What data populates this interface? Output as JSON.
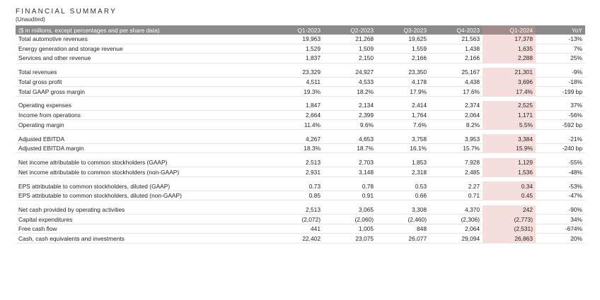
{
  "title": "FINANCIAL SUMMARY",
  "subtitle": "(Unaudited)",
  "header": {
    "label": "($ in millions, except percentages and per share data)",
    "columns": [
      "Q1-2023",
      "Q2-2023",
      "Q3-2023",
      "Q4-2023",
      "Q1-2024",
      "YoY"
    ]
  },
  "highlight_color": "#f6dedd",
  "groups": [
    {
      "rows": [
        {
          "label": "Total automotive revenues",
          "values": [
            "19,963",
            "21,268",
            "19,625",
            "21,563",
            "17,378",
            "-13%"
          ]
        },
        {
          "label": "Energy generation and storage revenue",
          "values": [
            "1,529",
            "1,509",
            "1,559",
            "1,438",
            "1,635",
            "7%"
          ]
        },
        {
          "label": "Services and other revenue",
          "values": [
            "1,837",
            "2,150",
            "2,166",
            "2,166",
            "2,288",
            "25%"
          ]
        }
      ]
    },
    {
      "rows": [
        {
          "label": "Total revenues",
          "values": [
            "23,329",
            "24,927",
            "23,350",
            "25,167",
            "21,301",
            "-9%"
          ]
        },
        {
          "label": "Total gross profit",
          "values": [
            "4,511",
            "4,533",
            "4,178",
            "4,438",
            "3,696",
            "-18%"
          ]
        },
        {
          "label": "Total GAAP gross margin",
          "values": [
            "19.3%",
            "18.2%",
            "17.9%",
            "17.6%",
            "17.4%",
            "-199 bp"
          ]
        }
      ]
    },
    {
      "rows": [
        {
          "label": "Operating expenses",
          "values": [
            "1,847",
            "2,134",
            "2,414",
            "2,374",
            "2,525",
            "37%"
          ]
        },
        {
          "label": "Income from operations",
          "values": [
            "2,664",
            "2,399",
            "1,764",
            "2,064",
            "1,171",
            "-56%"
          ]
        },
        {
          "label": "Operating margin",
          "values": [
            "11.4%",
            "9.6%",
            "7.6%",
            "8.2%",
            "5.5%",
            "-592 bp"
          ]
        }
      ]
    },
    {
      "rows": [
        {
          "label": "Adjusted EBITDA",
          "values": [
            "4,267",
            "4,653",
            "3,758",
            "3,953",
            "3,384",
            "-21%"
          ]
        },
        {
          "label": "Adjusted EBITDA margin",
          "values": [
            "18.3%",
            "18.7%",
            "16.1%",
            "15.7%",
            "15.9%",
            "-240 bp"
          ]
        }
      ]
    },
    {
      "rows": [
        {
          "label": "Net income attributable to common stockholders (GAAP)",
          "values": [
            "2,513",
            "2,703",
            "1,853",
            "7,928",
            "1,129",
            "-55%"
          ]
        },
        {
          "label": "Net income attributable to common stockholders (non-GAAP)",
          "values": [
            "2,931",
            "3,148",
            "2,318",
            "2,485",
            "1,536",
            "-48%"
          ]
        }
      ]
    },
    {
      "rows": [
        {
          "label": "EPS attributable to common stockholders, diluted (GAAP)",
          "values": [
            "0.73",
            "0.78",
            "0.53",
            "2.27",
            "0.34",
            "-53%"
          ]
        },
        {
          "label": "EPS attributable to common stockholders, diluted (non-GAAP)",
          "values": [
            "0.85",
            "0.91",
            "0.66",
            "0.71",
            "0.45",
            "-47%"
          ]
        }
      ]
    },
    {
      "rows": [
        {
          "label": "Net cash provided by operating activities",
          "values": [
            "2,513",
            "3,065",
            "3,308",
            "4,370",
            "242",
            "-90%"
          ]
        },
        {
          "label": "Capital expenditures",
          "values": [
            "(2,072)",
            "(2,060)",
            "(2,460)",
            "(2,306)",
            "(2,773)",
            "34%"
          ]
        },
        {
          "label": "Free cash flow",
          "values": [
            "441",
            "1,005",
            "848",
            "2,064",
            "(2,531)",
            "-674%"
          ]
        },
        {
          "label": "Cash, cash equivalents and investments",
          "values": [
            "22,402",
            "23,075",
            "26,077",
            "29,094",
            "26,863",
            "20%"
          ]
        }
      ]
    }
  ]
}
